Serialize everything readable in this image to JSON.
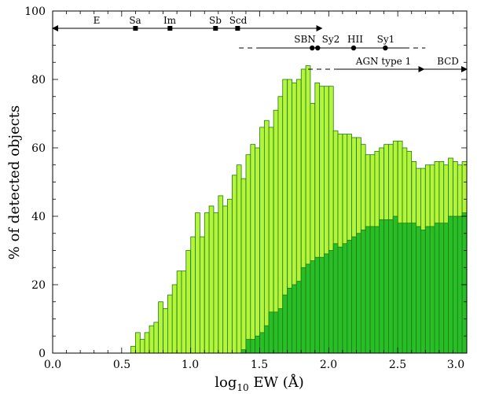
{
  "chart_data": {
    "type": "bar",
    "title": "",
    "xlabel_main": "log",
    "xlabel_sub": "10",
    "xlabel_rest": " EW (Å)",
    "ylabel": "% of detected objects",
    "xlim": [
      0.0,
      3.0
    ],
    "ylim": [
      0,
      100
    ],
    "xticks": [
      "0.0",
      "0.5",
      "1.0",
      "1.5",
      "2.0",
      "2.5",
      "3.0"
    ],
    "yticks": [
      "0",
      "20",
      "40",
      "60",
      "80",
      "100"
    ],
    "colors": {
      "light": "#b4f53c",
      "dark": "#28be28",
      "edge": "#1f7a10"
    },
    "bin_width": 0.0333,
    "x": [
      0.017,
      0.05,
      0.083,
      0.117,
      0.15,
      0.183,
      0.217,
      0.25,
      0.283,
      0.317,
      0.35,
      0.383,
      0.417,
      0.45,
      0.483,
      0.517,
      0.55,
      0.583,
      0.617,
      0.65,
      0.683,
      0.717,
      0.75,
      0.783,
      0.817,
      0.85,
      0.883,
      0.917,
      0.95,
      0.983,
      1.017,
      1.05,
      1.083,
      1.117,
      1.15,
      1.183,
      1.217,
      1.25,
      1.283,
      1.317,
      1.35,
      1.383,
      1.417,
      1.45,
      1.483,
      1.517,
      1.55,
      1.583,
      1.617,
      1.65,
      1.683,
      1.717,
      1.75,
      1.783,
      1.817,
      1.85,
      1.883,
      1.917,
      1.95,
      1.983,
      2.017,
      2.05,
      2.083,
      2.117,
      2.15,
      2.183,
      2.217,
      2.25,
      2.283,
      2.317,
      2.35,
      2.383,
      2.417,
      2.45,
      2.483,
      2.517,
      2.55,
      2.583,
      2.617,
      2.65,
      2.683,
      2.717,
      2.75,
      2.783,
      2.817,
      2.85,
      2.883,
      2.917,
      2.95,
      2.983
    ],
    "series": [
      {
        "name": "",
        "values": [
          0,
          0,
          0,
          0,
          0,
          0,
          0,
          0,
          0,
          0,
          0,
          0,
          0,
          0,
          0,
          0,
          0,
          2,
          6,
          4,
          6,
          8,
          9,
          15,
          13,
          17,
          20,
          24,
          24,
          30,
          34,
          41,
          34,
          41,
          43,
          41,
          46,
          43,
          45,
          52,
          55,
          51,
          58,
          61,
          60,
          66,
          68,
          66,
          71,
          75,
          80,
          80,
          79,
          80,
          83,
          84,
          73,
          79,
          78,
          78,
          78,
          65,
          64,
          64,
          64,
          63,
          63,
          61,
          58,
          58,
          59,
          60,
          61,
          61,
          62,
          62,
          60,
          59,
          56,
          54,
          54,
          55,
          55,
          56,
          56,
          55,
          57,
          56,
          55,
          56
        ]
      },
      {
        "name": "",
        "values": [
          0,
          0,
          0,
          0,
          0,
          0,
          0,
          0,
          0,
          0,
          0,
          0,
          0,
          0,
          0,
          0,
          0,
          0,
          0,
          0,
          0,
          0,
          0,
          0,
          0,
          0,
          0,
          0,
          0,
          0,
          0,
          0,
          0,
          0,
          0,
          0,
          0,
          0,
          0,
          0,
          0,
          1,
          4,
          4,
          5,
          6,
          8,
          12,
          12,
          13,
          17,
          19,
          20,
          21,
          25,
          26,
          27,
          28,
          28,
          29,
          30,
          32,
          31,
          32,
          33,
          34,
          35,
          36,
          37,
          37,
          37,
          39,
          39,
          39,
          40,
          38,
          38,
          38,
          38,
          37,
          36,
          37,
          37,
          38,
          38,
          38,
          40,
          40,
          40,
          41
        ]
      }
    ],
    "annotations": {
      "hubble": {
        "range_start": "E",
        "labels": [
          "E",
          "Sa",
          "Im",
          "Sb",
          "Scd"
        ],
        "points": [
          0.0,
          0.6,
          0.85,
          1.18,
          1.34
        ],
        "range_end": 1.95
      },
      "agn_row": {
        "labels": [
          "SBN",
          "Sy2",
          "HII",
          "Sy1"
        ],
        "points": [
          1.88,
          1.92,
          2.18,
          2.41
        ],
        "solid_range": [
          1.48,
          2.55
        ],
        "dashed_left": [
          1.35,
          1.48
        ],
        "dashed_right": [
          2.55,
          2.7
        ]
      },
      "agn_type1": {
        "label": "AGN type 1",
        "solid_range": [
          2.05,
          2.69
        ],
        "dashed_left": [
          1.85,
          2.05
        ]
      },
      "bcd": {
        "label": "BCD",
        "range": [
          2.69,
          3.0
        ]
      }
    }
  }
}
